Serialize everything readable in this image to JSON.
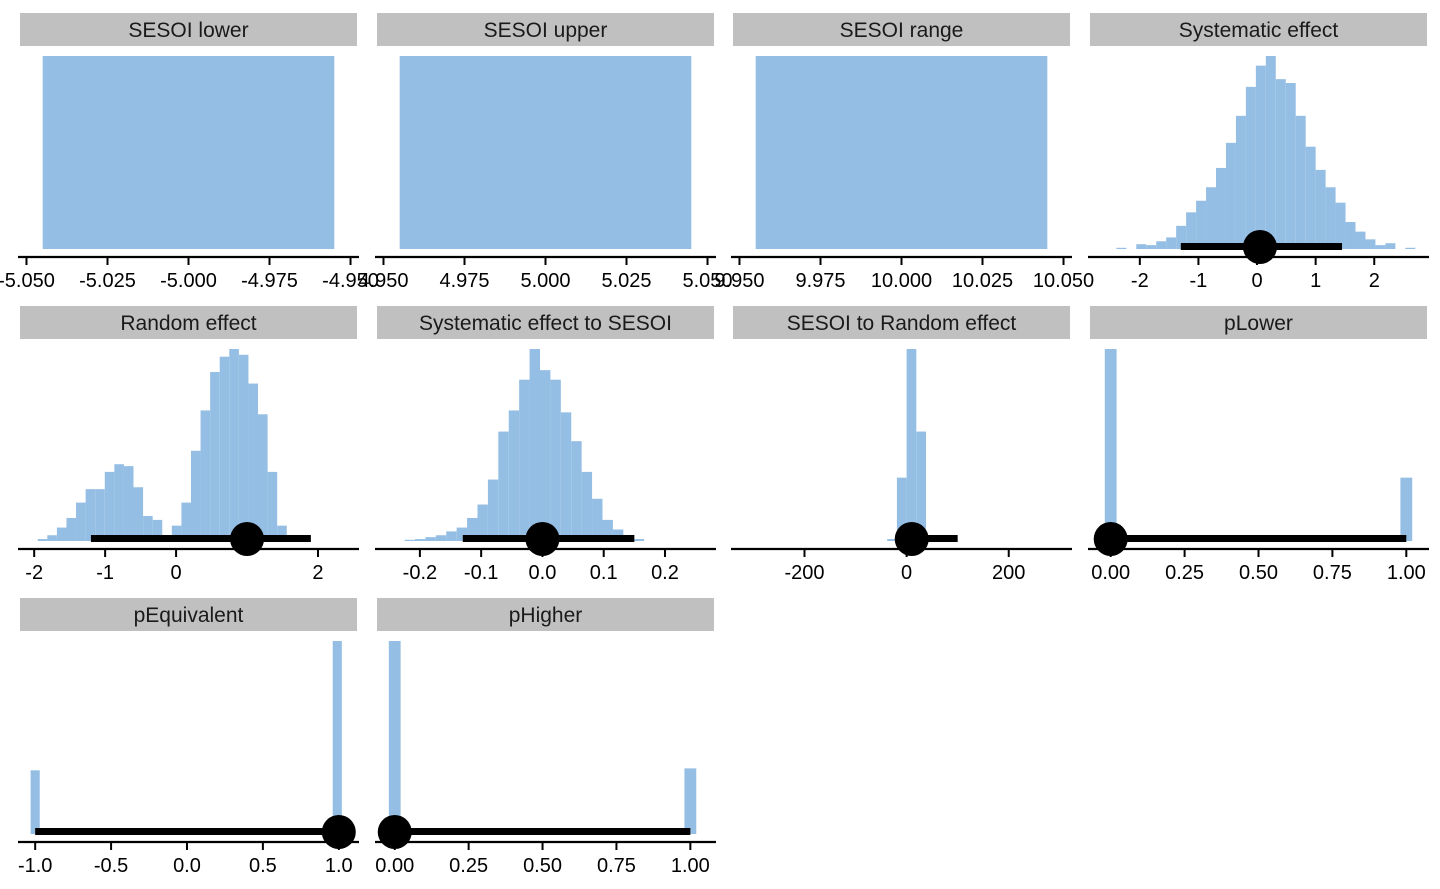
{
  "colors": {
    "bar_fill": "#95bee4",
    "strip_fill": "#c0c0c0",
    "interval": "#000000",
    "axis": "#000000"
  },
  "chart_data": [
    {
      "type": "histogram",
      "title": "SESOI lower",
      "xlim": [
        -5.052,
        -4.948
      ],
      "ticks": [
        "-5.050",
        "-5.025",
        "-5.000",
        "-4.975",
        "-4.950"
      ],
      "tick_values": [
        -5.05,
        -5.025,
        -5.0,
        -4.975,
        -4.95
      ],
      "bins": [
        {
          "x0": -5.045,
          "x1": -4.955,
          "h": 1.0
        }
      ],
      "interval": null
    },
    {
      "type": "histogram",
      "title": "SESOI upper",
      "xlim": [
        4.948,
        5.052
      ],
      "ticks": [
        "4.950",
        "4.975",
        "5.000",
        "5.025",
        "5.050"
      ],
      "tick_values": [
        4.95,
        4.975,
        5.0,
        5.025,
        5.05
      ],
      "bins": [
        {
          "x0": 4.955,
          "x1": 5.045,
          "h": 1.0
        }
      ],
      "interval": null
    },
    {
      "type": "histogram",
      "title": "SESOI range",
      "xlim": [
        9.948,
        10.052
      ],
      "ticks": [
        "9.950",
        "9.975",
        "10.000",
        "10.025",
        "10.050"
      ],
      "tick_values": [
        9.95,
        9.975,
        10.0,
        10.025,
        10.05
      ],
      "bins": [
        {
          "x0": 9.955,
          "x1": 10.045,
          "h": 1.0
        }
      ],
      "interval": null
    },
    {
      "type": "histogram",
      "title": "Systematic effect",
      "xlim": [
        -2.85,
        2.9
      ],
      "ticks": [
        "-2",
        "-1",
        "0",
        "1",
        "2"
      ],
      "tick_values": [
        -2,
        -1,
        0,
        1,
        2
      ],
      "bin_start": -2.4,
      "bin_width": 0.17,
      "heights": [
        0.005,
        0.0,
        0.025,
        0.02,
        0.04,
        0.06,
        0.12,
        0.19,
        0.25,
        0.32,
        0.42,
        0.55,
        0.69,
        0.84,
        0.95,
        1.0,
        0.88,
        0.86,
        0.69,
        0.53,
        0.41,
        0.32,
        0.24,
        0.14,
        0.09,
        0.05,
        0.02,
        0.03,
        0.0,
        0.005
      ],
      "interval": {
        "lower": -1.3,
        "upper": 1.45,
        "point": 0.05
      }
    },
    {
      "type": "histogram",
      "title": "Random effect",
      "xlim": [
        -2.2,
        2.55
      ],
      "ticks": [
        "-2",
        "-1",
        "0",
        "2"
      ],
      "tick_values": [
        -2,
        -1,
        0,
        2
      ],
      "bin_start": -1.95,
      "bin_width": 0.135,
      "heights": [
        0.01,
        0.03,
        0.07,
        0.12,
        0.2,
        0.27,
        0.27,
        0.36,
        0.4,
        0.39,
        0.28,
        0.13,
        0.11,
        0.0,
        0.08,
        0.2,
        0.47,
        0.68,
        0.88,
        0.96,
        1.0,
        0.97,
        0.82,
        0.66,
        0.36,
        0.08,
        0.03
      ],
      "interval": {
        "lower": -1.2,
        "upper": 1.9,
        "point": 1.0
      }
    },
    {
      "type": "histogram",
      "title": "Systematic effect to SESOI",
      "xlim": [
        -0.27,
        0.28
      ],
      "ticks": [
        "-0.2",
        "-0.1",
        "0.0",
        "0.1",
        "0.2"
      ],
      "tick_values": [
        -0.2,
        -0.1,
        0.0,
        0.1,
        0.2
      ],
      "bin_start": -0.225,
      "bin_width": 0.017,
      "heights": [
        0.005,
        0.01,
        0.02,
        0.03,
        0.05,
        0.07,
        0.12,
        0.19,
        0.32,
        0.57,
        0.68,
        0.84,
        1.0,
        0.89,
        0.84,
        0.67,
        0.52,
        0.36,
        0.22,
        0.11,
        0.06,
        0.02,
        0.01
      ],
      "interval": {
        "lower": -0.13,
        "upper": 0.15,
        "point": 0.0
      }
    },
    {
      "type": "histogram",
      "title": "SESOI to Random effect",
      "xlim": [
        -340,
        320
      ],
      "ticks": [
        "-200",
        "0",
        "200"
      ],
      "tick_values": [
        -200,
        0,
        200
      ],
      "bin_start": -38,
      "bin_width": 19,
      "heights": [
        0.01,
        0.33,
        1.0,
        0.57,
        0.03
      ],
      "interval": {
        "lower": -20,
        "upper": 100,
        "point": 10
      }
    },
    {
      "type": "histogram",
      "title": "pLower",
      "xlim": [
        -0.07,
        1.07
      ],
      "ticks": [
        "0.00",
        "0.25",
        "0.50",
        "0.75",
        "1.00"
      ],
      "tick_values": [
        0.0,
        0.25,
        0.5,
        0.75,
        1.0
      ],
      "bins": [
        {
          "x0": -0.02,
          "x1": 0.02,
          "h": 1.0
        },
        {
          "x0": 0.98,
          "x1": 1.02,
          "h": 0.33
        }
      ],
      "interval": {
        "lower": 0.0,
        "upper": 1.0,
        "point": 0.0
      }
    },
    {
      "type": "histogram",
      "title": "pEquivalent",
      "xlim": [
        -1.1,
        1.12
      ],
      "ticks": [
        "-1.0",
        "-0.5",
        "0.0",
        "0.5",
        "1.0"
      ],
      "tick_values": [
        -1.0,
        -0.5,
        0.0,
        0.5,
        1.0
      ],
      "bins": [
        {
          "x0": -1.03,
          "x1": -0.97,
          "h": 0.33
        },
        {
          "x0": 0.96,
          "x1": 1.02,
          "h": 1.0
        }
      ],
      "interval": {
        "lower": -1.0,
        "upper": 1.0,
        "point": 1.0
      }
    },
    {
      "type": "histogram",
      "title": "pHigher",
      "xlim": [
        -0.06,
        1.08
      ],
      "ticks": [
        "0.00",
        "0.25",
        "0.50",
        "0.75",
        "1.00"
      ],
      "tick_values": [
        0.0,
        0.25,
        0.5,
        0.75,
        1.0
      ],
      "bins": [
        {
          "x0": -0.02,
          "x1": 0.02,
          "h": 1.0
        },
        {
          "x0": 0.98,
          "x1": 1.02,
          "h": 0.34
        }
      ],
      "interval": {
        "lower": 0.0,
        "upper": 1.0,
        "point": 0.0
      }
    }
  ]
}
